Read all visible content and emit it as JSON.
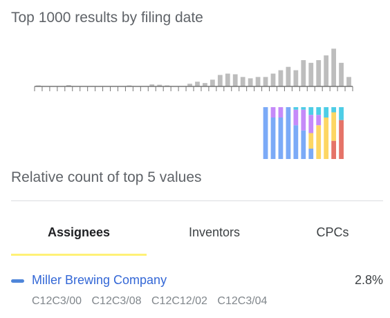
{
  "histogram": {
    "title": "Top 1000 results by filing date"
  },
  "chart_data": {
    "type": "bar",
    "title": "Top 1000 results by filing date",
    "xlabel": "",
    "ylabel": "",
    "ylim": [
      0,
      80
    ],
    "grid": false,
    "values": [
      0,
      0,
      0,
      0,
      1,
      1,
      0,
      0,
      0,
      0,
      0,
      0,
      0,
      1,
      0,
      0,
      0,
      0,
      1,
      1,
      0,
      0,
      0,
      0,
      0,
      0,
      0,
      0,
      0,
      0,
      0,
      0,
      0,
      0,
      0,
      1,
      1,
      0,
      0,
      0,
      0,
      0,
      0,
      0,
      0,
      0,
      0,
      0,
      0,
      1,
      1,
      1,
      0,
      0,
      0,
      1,
      0,
      0,
      0,
      0,
      0,
      0,
      0,
      0,
      0,
      0,
      0,
      0,
      0,
      0,
      0,
      0,
      0,
      0,
      0,
      0,
      0,
      0,
      0,
      0,
      0,
      0,
      0,
      0,
      0,
      0,
      0,
      0,
      0,
      0,
      0,
      0,
      0,
      0,
      0,
      0,
      0,
      0,
      0,
      0,
      0,
      0,
      0,
      0,
      0,
      0,
      0,
      0,
      0,
      0,
      0,
      0,
      0,
      0,
      0,
      0,
      0,
      0,
      0,
      0,
      0,
      0,
      0,
      0,
      0,
      0,
      0,
      0,
      0,
      0,
      0,
      0,
      0,
      0,
      0,
      0,
      0,
      0,
      0,
      0,
      0,
      0,
      0,
      0,
      0,
      0,
      0,
      0,
      0,
      0,
      0,
      0,
      0,
      0,
      0
    ],
    "bars": [
      {
        "v": 1.5
      },
      {
        "v": 0
      },
      {
        "v": 0
      },
      {
        "v": 0
      },
      {
        "v": 2
      },
      {
        "v": 0
      },
      {
        "v": 0
      },
      {
        "v": 0
      },
      {
        "v": 0
      },
      {
        "v": 0
      },
      {
        "v": 0
      },
      {
        "v": 0
      },
      {
        "v": 1.5
      },
      {
        "v": 0
      },
      {
        "v": 0
      },
      {
        "v": 3
      },
      {
        "v": 2.5
      },
      {
        "v": 1.5
      },
      {
        "v": 0
      },
      {
        "v": 0
      },
      {
        "v": 4
      },
      {
        "v": 7
      },
      {
        "v": 5
      },
      {
        "v": 10
      },
      {
        "v": 17
      },
      {
        "v": 19
      },
      {
        "v": 18
      },
      {
        "v": 14
      },
      {
        "v": 12
      },
      {
        "v": 14
      },
      {
        "v": 14
      },
      {
        "v": 19
      },
      {
        "v": 24
      },
      {
        "v": 29
      },
      {
        "v": 24
      },
      {
        "v": 39
      },
      {
        "v": 35
      },
      {
        "v": 39
      },
      {
        "v": 46
      },
      {
        "v": 56
      },
      {
        "v": 35
      },
      {
        "v": 14
      }
    ],
    "stacked_bars": [
      [
        1,
        0,
        0,
        0,
        0
      ],
      [
        0.8,
        0,
        0.2,
        0,
        0
      ],
      [
        0.8,
        0,
        0.2,
        0,
        0
      ],
      [
        1,
        0,
        0,
        0,
        0
      ],
      [
        0.65,
        0,
        0.3,
        0,
        0.05
      ],
      [
        0.55,
        0,
        0.4,
        0,
        0.05
      ],
      [
        0.2,
        0.3,
        0.35,
        0,
        0.15
      ],
      [
        0,
        0.65,
        0.2,
        0,
        0.15
      ],
      [
        0,
        0.8,
        0,
        0,
        0.2
      ],
      [
        0,
        0.55,
        0,
        0.35,
        0.1
      ],
      [
        0,
        0,
        0,
        0.75,
        0.25
      ]
    ]
  },
  "colors": {
    "bar": "#bdbdbd",
    "axis": "#757575",
    "stack": [
      "#7baaf7",
      "#fdd663",
      "#c58af9",
      "#e57368",
      "#4ecde6"
    ]
  },
  "relative_title": "Relative count of top 5 values",
  "tabs": [
    {
      "label": "Assignees",
      "active": true
    },
    {
      "label": "Inventors",
      "active": false
    },
    {
      "label": "CPCs",
      "active": false
    }
  ],
  "result": {
    "assignee": "Miller Brewing Company",
    "percent": "2.8%",
    "cpcs": [
      "C12C3/00",
      "C12C3/08",
      "C12C12/02",
      "C12C3/04"
    ]
  }
}
